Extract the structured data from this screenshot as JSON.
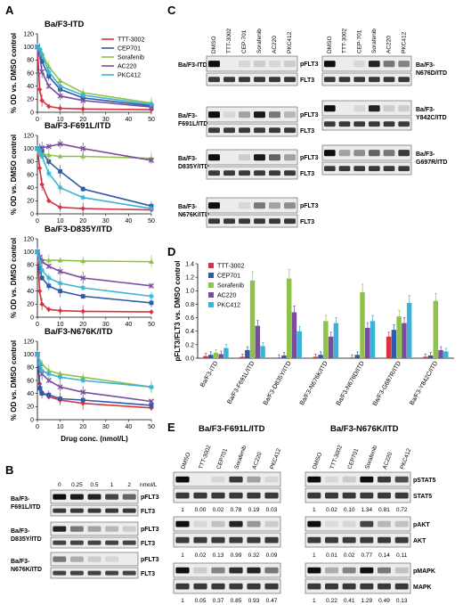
{
  "panels": {
    "A": "A",
    "B": "B",
    "C": "C",
    "D": "D",
    "E": "E"
  },
  "colors": {
    "TTT-3002": "#d9333f",
    "CEP701": "#2f5aa8",
    "Sorafenib": "#8fc24a",
    "AC220": "#7a4c9e",
    "PKC412": "#38b4d6"
  },
  "line_xlabel": "Drug conc. (nmol/L)",
  "line_ylabel": "% OD vs. DMSO control",
  "chart_data": [
    {
      "type": "line",
      "title": "Ba/F3-ITD",
      "xlabel": "Drug conc. (nmol/L)",
      "ylabel": "% OD vs. DMSO control",
      "xlim": [
        0,
        50
      ],
      "ylim": [
        0,
        120
      ],
      "x": [
        0,
        1,
        2,
        5,
        10,
        20,
        50
      ],
      "series": [
        {
          "name": "TTT-3002",
          "values": [
            100,
            35,
            18,
            9,
            6,
            5,
            4
          ]
        },
        {
          "name": "CEP701",
          "values": [
            100,
            95,
            78,
            55,
            35,
            22,
            10
          ]
        },
        {
          "name": "Sorafenib",
          "values": [
            100,
            97,
            90,
            70,
            48,
            30,
            14
          ]
        },
        {
          "name": "AC220",
          "values": [
            100,
            88,
            62,
            40,
            25,
            18,
            8
          ]
        },
        {
          "name": "PKC412",
          "values": [
            100,
            96,
            88,
            62,
            40,
            26,
            12
          ]
        }
      ]
    },
    {
      "type": "line",
      "title": "Ba/F3-F691L/ITD",
      "xlabel": "Drug conc. (nmol/L)",
      "ylabel": "% OD vs. DMSO control",
      "xlim": [
        0,
        50
      ],
      "ylim": [
        0,
        120
      ],
      "x": [
        0,
        1,
        2,
        5,
        10,
        20,
        50
      ],
      "series": [
        {
          "name": "TTT-3002",
          "values": [
            100,
            70,
            45,
            20,
            10,
            8,
            6
          ]
        },
        {
          "name": "CEP701",
          "values": [
            100,
            98,
            95,
            80,
            65,
            38,
            12
          ]
        },
        {
          "name": "Sorafenib",
          "values": [
            100,
            95,
            92,
            90,
            88,
            88,
            85
          ]
        },
        {
          "name": "AC220",
          "values": [
            100,
            100,
            101,
            103,
            107,
            100,
            82
          ]
        },
        {
          "name": "PKC412",
          "values": [
            100,
            97,
            88,
            62,
            40,
            25,
            8
          ]
        }
      ]
    },
    {
      "type": "line",
      "title": "Ba/F3-D835Y/ITD",
      "xlabel": "Drug conc. (nmol/L)",
      "ylabel": "% OD vs. DMSO control",
      "xlim": [
        0,
        50
      ],
      "ylim": [
        0,
        120
      ],
      "x": [
        0,
        1,
        2,
        5,
        10,
        20,
        50
      ],
      "series": [
        {
          "name": "TTT-3002",
          "values": [
            100,
            40,
            20,
            12,
            10,
            9,
            8
          ]
        },
        {
          "name": "CEP701",
          "values": [
            100,
            75,
            60,
            48,
            40,
            32,
            22
          ]
        },
        {
          "name": "Sorafenib",
          "values": [
            100,
            90,
            88,
            87,
            87,
            86,
            85
          ]
        },
        {
          "name": "AC220",
          "values": [
            100,
            92,
            85,
            78,
            70,
            60,
            48
          ]
        },
        {
          "name": "PKC412",
          "values": [
            100,
            85,
            72,
            60,
            52,
            45,
            32
          ]
        }
      ]
    },
    {
      "type": "line",
      "title": "Ba/F3-N676K/ITD",
      "xlabel": "Drug conc. (nmol/L)",
      "ylabel": "% OD vs. DMSO control",
      "xlim": [
        0,
        50
      ],
      "ylim": [
        0,
        120
      ],
      "x": [
        0,
        1,
        2,
        5,
        10,
        20,
        50
      ],
      "series": [
        {
          "name": "TTT-3002",
          "values": [
            100,
            55,
            42,
            35,
            30,
            25,
            18
          ]
        },
        {
          "name": "CEP701",
          "values": [
            100,
            48,
            40,
            38,
            32,
            30,
            22
          ]
        },
        {
          "name": "Sorafenib",
          "values": [
            100,
            90,
            85,
            75,
            70,
            65,
            50
          ]
        },
        {
          "name": "AC220",
          "values": [
            100,
            80,
            70,
            60,
            50,
            42,
            28
          ]
        },
        {
          "name": "PKC412",
          "values": [
            100,
            85,
            75,
            70,
            65,
            60,
            50
          ]
        }
      ]
    },
    {
      "type": "bar",
      "ylabel": "pFLT3/FLT3 vs. DMSO control",
      "ylim": [
        0,
        1.4
      ],
      "categories": [
        "Ba/F3-ITD",
        "Ba/F3-F691L/ITD",
        "Ba/F3-D835Y/ITD",
        "Ba/F3-N676K/ITD",
        "Ba/F3-N676D/ITD",
        "Ba/F3-G697R/ITD",
        "Ba/F3-Y842C/ITD"
      ],
      "series": [
        {
          "name": "TTT-3002",
          "values": [
            0.03,
            0.02,
            0.01,
            0.02,
            0.01,
            0.32,
            0.02
          ]
        },
        {
          "name": "CEP701",
          "values": [
            0.05,
            0.12,
            0.04,
            0.05,
            0.05,
            0.42,
            0.04
          ]
        },
        {
          "name": "Sorafenib",
          "values": [
            0.08,
            1.15,
            1.18,
            0.55,
            0.98,
            0.62,
            0.85
          ]
        },
        {
          "name": "AC220",
          "values": [
            0.06,
            0.48,
            0.68,
            0.32,
            0.45,
            0.52,
            0.12
          ]
        },
        {
          "name": "PKC412",
          "values": [
            0.15,
            0.18,
            0.4,
            0.52,
            0.55,
            0.82,
            0.1
          ]
        }
      ]
    }
  ],
  "blotB": {
    "conc_labels": [
      "0",
      "0.25",
      "0.5",
      "1",
      "2"
    ],
    "unit": "nmol/L",
    "cells": [
      "Ba/F3-\nF691L/ITD",
      "Ba/F3-\nD835Y/ITD",
      "Ba/F3-\nN676K/ITD"
    ],
    "rows": [
      "pFLT3",
      "FLT3"
    ]
  },
  "blotC": {
    "lanes": [
      "DMSO",
      "TTT-3002",
      "CEP-701",
      "Sorafenib",
      "AC220",
      "PKC412"
    ],
    "left_cells": [
      "Ba/F3-ITD",
      "Ba/F3-\nF691L/ITD",
      "Ba/F3-\nD835Y/ITD",
      "Ba/F3-\nN676K/ITD"
    ],
    "right_cells": [
      "Ba/F3-\nN676D/ITD",
      "Ba/F3-\nY842C/ITD",
      "Ba/F3-\nG697R/ITD"
    ],
    "rows": [
      "pFLT3",
      "FLT3"
    ]
  },
  "blotE": {
    "left_title": "Ba/F3-F691L/ITD",
    "right_title": "Ba/F3-N676K/ITD",
    "lanes": [
      "DMSO",
      "TTT-3002",
      "CEP701",
      "Sorafenib",
      "AC220",
      "PKC412"
    ],
    "rows": [
      "pSTAT5",
      "STAT5",
      "pAKT",
      "AKT",
      "pMAPK",
      "MAPK"
    ],
    "stat5_left": [
      "1",
      "0.00",
      "0.02",
      "0.78",
      "0.19",
      "0.03"
    ],
    "stat5_right": [
      "1",
      "0.02",
      "0.10",
      "1.34",
      "0.81",
      "0.72"
    ],
    "akt_left": [
      "1",
      "0.02",
      "0.13",
      "0.99",
      "0.32",
      "0.09"
    ],
    "akt_right": [
      "1",
      "0.01",
      "0.02",
      "0.77",
      "0.14",
      "0.11"
    ],
    "mapk_left": [
      "1",
      "0.05",
      "0.37",
      "0.85",
      "0.93",
      "0.47"
    ],
    "mapk_right": [
      "1",
      "0.22",
      "0.41",
      "1.29",
      "0.49",
      "0.13"
    ]
  }
}
